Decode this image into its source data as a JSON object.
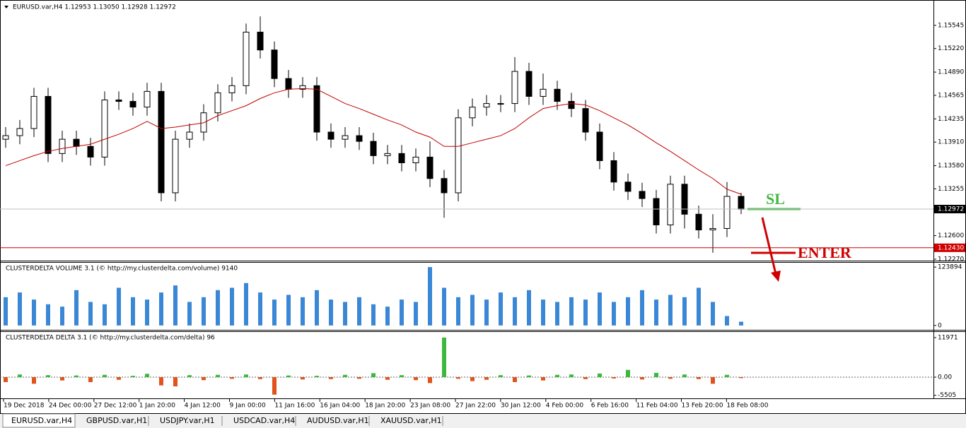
{
  "chart_data": [
    {
      "type": "candlestick",
      "title": "EURUSD.var,H4  1.12953 1.13050 1.12928 1.12972",
      "open": [
        1.1395,
        1.14,
        1.141,
        1.1455,
        1.1375,
        1.1395,
        1.1385,
        1.137,
        1.145,
        1.1448,
        1.144,
        1.1462,
        1.132,
        1.1395,
        1.1405,
        1.1432,
        1.146,
        1.147,
        1.1545,
        1.152,
        1.148,
        1.1465,
        1.147,
        1.1405,
        1.1395,
        1.14,
        1.1392,
        1.1372,
        1.1375,
        1.1362,
        1.137,
        1.134,
        1.132,
        1.1425,
        1.144,
        1.1445,
        1.1445,
        1.149,
        1.1455,
        1.1465,
        1.1448,
        1.1438,
        1.1405,
        1.1365,
        1.1335,
        1.1322,
        1.1312,
        1.1275,
        1.1332,
        1.129,
        1.1268,
        1.127,
        1.1315
      ],
      "high": [
        1.1412,
        1.1422,
        1.1467,
        1.1467,
        1.1407,
        1.1407,
        1.1397,
        1.1462,
        1.1462,
        1.146,
        1.1474,
        1.1474,
        1.1407,
        1.1417,
        1.1444,
        1.1472,
        1.1482,
        1.1557,
        1.1567,
        1.1532,
        1.1492,
        1.1482,
        1.1482,
        1.1417,
        1.1412,
        1.1412,
        1.1404,
        1.1387,
        1.1387,
        1.1382,
        1.1392,
        1.1352,
        1.1437,
        1.1452,
        1.1457,
        1.1457,
        1.151,
        1.1502,
        1.1487,
        1.1477,
        1.146,
        1.145,
        1.1417,
        1.1377,
        1.1347,
        1.1334,
        1.1324,
        1.1344,
        1.1344,
        1.1302,
        1.129,
        1.1335,
        1.132
      ],
      "low": [
        1.1383,
        1.1388,
        1.1398,
        1.1363,
        1.1363,
        1.1373,
        1.1358,
        1.1358,
        1.1436,
        1.1428,
        1.1428,
        1.1308,
        1.1308,
        1.1383,
        1.1393,
        1.142,
        1.1448,
        1.1458,
        1.1508,
        1.1468,
        1.1453,
        1.1453,
        1.1393,
        1.1383,
        1.1383,
        1.138,
        1.136,
        1.136,
        1.135,
        1.135,
        1.1328,
        1.1285,
        1.1308,
        1.1413,
        1.1428,
        1.1433,
        1.1433,
        1.1443,
        1.1443,
        1.1436,
        1.1426,
        1.1393,
        1.1353,
        1.1323,
        1.131,
        1.13,
        1.1263,
        1.1263,
        1.127,
        1.1256,
        1.1236,
        1.1258,
        1.129
      ],
      "close": [
        1.14,
        1.141,
        1.1455,
        1.1375,
        1.1395,
        1.1385,
        1.137,
        1.145,
        1.1448,
        1.144,
        1.1462,
        1.132,
        1.1395,
        1.1405,
        1.1432,
        1.146,
        1.147,
        1.1545,
        1.152,
        1.148,
        1.1465,
        1.147,
        1.1405,
        1.1395,
        1.14,
        1.1392,
        1.1372,
        1.1375,
        1.1362,
        1.137,
        1.134,
        1.132,
        1.1425,
        1.144,
        1.1445,
        1.1445,
        1.149,
        1.1455,
        1.1465,
        1.1448,
        1.1438,
        1.1405,
        1.1365,
        1.1335,
        1.1322,
        1.1312,
        1.1275,
        1.1332,
        1.129,
        1.1268,
        1.127,
        1.1315,
        1.1297
      ],
      "overlay_values": [
        1.1358,
        1.1365,
        1.1372,
        1.1378,
        1.1382,
        1.1385,
        1.1388,
        1.1395,
        1.1402,
        1.141,
        1.142,
        1.141,
        1.1412,
        1.1415,
        1.1418,
        1.1428,
        1.1435,
        1.1442,
        1.1452,
        1.146,
        1.1465,
        1.1466,
        1.1465,
        1.1455,
        1.1445,
        1.1438,
        1.143,
        1.1422,
        1.1415,
        1.1405,
        1.1398,
        1.1385,
        1.1385,
        1.139,
        1.1395,
        1.14,
        1.141,
        1.1425,
        1.1438,
        1.1442,
        1.1445,
        1.1443,
        1.1435,
        1.1425,
        1.1415,
        1.1403,
        1.139,
        1.1378,
        1.1365,
        1.1352,
        1.134,
        1.1325,
        1.1318
      ],
      "overlay_color": "#c00000",
      "color": "#000000",
      "ylim": [
        1.1226,
        1.1588
      ],
      "yticks": [
        1.15545,
        {
          "value": 1.1522,
          "label": "1.15220"
        },
        {
          "value": 1.1489,
          "label": "1.14890"
        },
        1.14565,
        1.14235,
        {
          "value": 1.1391,
          "label": "1.13910"
        },
        {
          "value": 1.1358,
          "label": "1.13580"
        },
        1.13255,
        {
          "value": 1.126,
          "label": "1.12600"
        },
        {
          "value": 1.1227,
          "label": "1.12270"
        }
      ],
      "current_price": 1.12972,
      "level_line": {
        "value": 1.1243,
        "label": "1.12430"
      },
      "level_color": "#d00000",
      "annotations": [
        "SL",
        "ENTER"
      ]
    },
    {
      "type": "bar",
      "title": "CLUSTERDELTA VOLUME 3.1 (© http://my.clusterdelta.com/volume) 9140",
      "values": [
        60000,
        70000,
        55000,
        45000,
        40000,
        75000,
        50000,
        45000,
        80000,
        60000,
        55000,
        70000,
        85000,
        50000,
        60000,
        75000,
        80000,
        90000,
        70000,
        55000,
        65000,
        60000,
        75000,
        55000,
        50000,
        60000,
        45000,
        40000,
        55000,
        50000,
        123894,
        80000,
        60000,
        65000,
        55000,
        70000,
        60000,
        75000,
        55000,
        50000,
        60000,
        55000,
        70000,
        50000,
        60000,
        75000,
        55000,
        65000,
        60000,
        80000,
        50000,
        20000,
        8000
      ],
      "color": "#3a87d6",
      "ylim": [
        -10700,
        134600
      ],
      "yticks": [
        0,
        123894
      ]
    },
    {
      "type": "bar",
      "title": "CLUSTERDELTA DELTA 3.1 (© http://my.clusterdelta.com/delta) 96",
      "values": [
        -1500,
        800,
        -2000,
        600,
        -1000,
        500,
        -1500,
        700,
        -800,
        400,
        1000,
        -2500,
        -2800,
        600,
        -900,
        700,
        -500,
        800,
        -600,
        -5300,
        500,
        -700,
        400,
        -600,
        700,
        -500,
        1200,
        -800,
        600,
        -900,
        -1800,
        11971,
        -500,
        -1200,
        -800,
        600,
        -1500,
        500,
        -1000,
        700,
        800,
        -600,
        1100,
        -400,
        2200,
        -700,
        1300,
        -500,
        800,
        -600,
        -2000,
        700,
        -300
      ],
      "color": "#3cb83c",
      "negative_color": "#e0531b",
      "ylim": [
        -6200,
        13680
      ],
      "yticks": [
        11971,
        {
          "value": 0,
          "label": "0.00"
        },
        -5505
      ]
    }
  ],
  "time_labels": [
    "19 Dec 2018",
    "24 Dec 00:00",
    "27 Dec 12:00",
    "1 Jan 20:00",
    "4 Jan 12:00",
    "9 Jan 00:00",
    "11 Jan 16:00",
    "16 Jan 04:00",
    "18 Jan 20:00",
    "23 Jan 08:00",
    "27 Jan 22:00",
    "30 Jan 12:00",
    "4 Feb 00:00",
    "6 Feb 16:00",
    "11 Feb 04:00",
    "13 Feb 20:00",
    "18 Feb 08:00"
  ],
  "tabs": [
    "EURUSD.var,H4",
    "GBPUSD.var,H1",
    "USDJPY.var,H1",
    "USDCAD.var,H4",
    "AUDUSD.var,H1",
    "XAUUSD.var,H1"
  ]
}
